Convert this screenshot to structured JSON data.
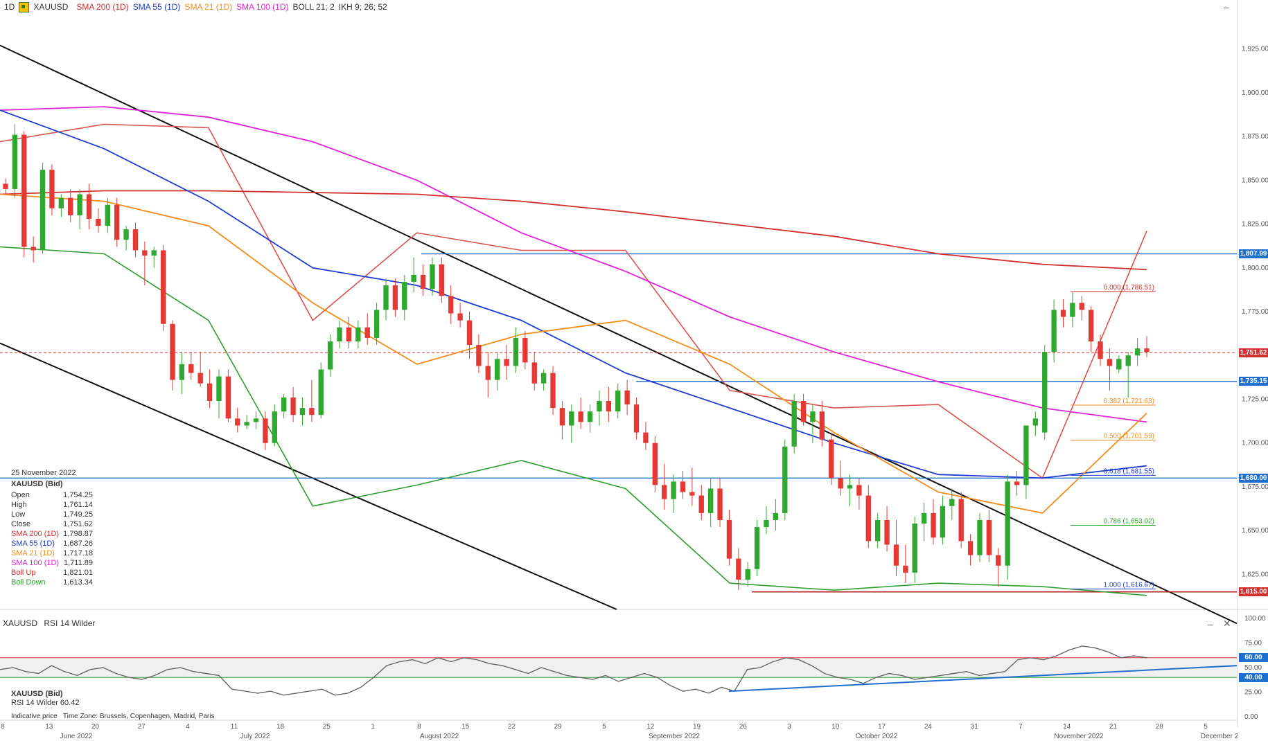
{
  "header": {
    "timeframe": "1D",
    "instrument": "XAUUSD",
    "indicators": [
      {
        "label": "SMA 200 (1D)",
        "color": "#d32f2f"
      },
      {
        "label": "SMA 55 (1D)",
        "color": "#1e3ccf"
      },
      {
        "label": "SMA 21 (1D)",
        "color": "#f28c1c"
      },
      {
        "label": "SMA 100 (1D)",
        "color": "#e020d8"
      },
      {
        "label": "BOLL 21; 2",
        "color": "#333333"
      },
      {
        "label": "IKH 9; 26; 52",
        "color": "#333333"
      }
    ]
  },
  "ohlc": {
    "date": "25 November 2022",
    "instrument": "XAUUSD (Bid)",
    "rows": [
      {
        "label": "Open",
        "value": "1,754.25",
        "color": "#333333"
      },
      {
        "label": "High",
        "value": "1,761.14",
        "color": "#333333"
      },
      {
        "label": "Low",
        "value": "1,749.25",
        "color": "#333333"
      },
      {
        "label": "Close",
        "value": "1,751.62",
        "color": "#333333"
      },
      {
        "label": "SMA 200 (1D)",
        "value": "1,798.87",
        "color": "#d32f2f"
      },
      {
        "label": "SMA 55 (1D)",
        "value": "1,687.26",
        "color": "#1e3ccf"
      },
      {
        "label": "SMA 21 (1D)",
        "value": "1,717.18",
        "color": "#f28c1c"
      },
      {
        "label": "SMA 100 (1D)",
        "value": "1,711.89",
        "color": "#e020d8"
      },
      {
        "label": "Boll Up",
        "value": "1,821.01",
        "color": "#d32f2f"
      },
      {
        "label": "Boll Down",
        "value": "1,613.34",
        "color": "#2e9e2e"
      }
    ]
  },
  "price_axis": {
    "ticks": [
      "1,925.00",
      "1,900.00",
      "1,875.00",
      "1,850.00",
      "1,825.00",
      "1,800.00",
      "1,775.00",
      "1,750.00",
      "1,725.00",
      "1,700.00",
      "1,675.00",
      "1,650.00",
      "1,625.00"
    ],
    "tags": [
      {
        "value": "1,807.99",
        "color": "#1e6fd0"
      },
      {
        "value": "1,751.62",
        "color": "#d32f2f"
      },
      {
        "value": "1,735.15",
        "color": "#1e6fd0"
      },
      {
        "value": "1,680.00",
        "color": "#1e6fd0"
      },
      {
        "value": "1,615.00",
        "color": "#d32f2f"
      }
    ]
  },
  "fibonacci": [
    {
      "label": "0.000 (1,786.51)",
      "color": "#d32f2f"
    },
    {
      "label": "0.382 (1,721.63)",
      "color": "#f28c1c"
    },
    {
      "label": "0.500 (1,701.59)",
      "color": "#f28c1c"
    },
    {
      "label": "0.618 (1,681.55)",
      "color": "#1e3ccf"
    },
    {
      "label": "0.786 (1,653.02)",
      "color": "#2e9e2e"
    },
    {
      "label": "1.000 (1,616.67)",
      "color": "#1e3ccf"
    }
  ],
  "date_axis": {
    "days": [
      "8",
      "13",
      "20",
      "27",
      "4",
      "11",
      "18",
      "25",
      "1",
      "8",
      "15",
      "22",
      "29",
      "5",
      "12",
      "19",
      "26",
      "3",
      "10",
      "17",
      "24",
      "31",
      "7",
      "14",
      "21",
      "28",
      "5"
    ],
    "months": [
      "June 2022",
      "July 2022",
      "August 2022",
      "September 2022",
      "October 2022",
      "November 2022",
      "December 2"
    ]
  },
  "rsi": {
    "instrument": "XAUUSD",
    "indicator": "RSI 14 Wilder",
    "info_instrument": "XAUUSD (Bid)",
    "info_label": "RSI 14 Wilder",
    "info_value": "60.42",
    "indicative": "Indicative price",
    "timezone": "Time Zone: Brussels, Copenhagen, Madrid, Paris",
    "ticks": [
      "100.00",
      "75.00",
      "50.00",
      "25.00",
      "0.00"
    ],
    "tags": [
      {
        "value": "60.00",
        "color": "#1e6fd0"
      },
      {
        "value": "40.00",
        "color": "#1e6fd0"
      }
    ]
  },
  "chart_data": {
    "type": "candlestick",
    "instrument": "XAUUSD (Bid)",
    "timeframe": "1D",
    "ylim": [
      1605,
      1945
    ],
    "candles_ohlc": [
      [
        1848,
        1851,
        1842,
        1845
      ],
      [
        1845,
        1882,
        1840,
        1876
      ],
      [
        1876,
        1878,
        1806,
        1812
      ],
      [
        1812,
        1818,
        1803,
        1810
      ],
      [
        1810,
        1860,
        1808,
        1856
      ],
      [
        1856,
        1859,
        1830,
        1834
      ],
      [
        1834,
        1842,
        1829,
        1840
      ],
      [
        1840,
        1845,
        1826,
        1830
      ],
      [
        1830,
        1845,
        1822,
        1842
      ],
      [
        1842,
        1848,
        1822,
        1828
      ],
      [
        1828,
        1834,
        1820,
        1824
      ],
      [
        1824,
        1840,
        1820,
        1836
      ],
      [
        1836,
        1840,
        1812,
        1816
      ],
      [
        1816,
        1824,
        1810,
        1822
      ],
      [
        1822,
        1826,
        1806,
        1810
      ],
      [
        1810,
        1815,
        1790,
        1807
      ],
      [
        1807,
        1812,
        1800,
        1810
      ],
      [
        1810,
        1813,
        1764,
        1768
      ],
      [
        1768,
        1770,
        1730,
        1736
      ],
      [
        1736,
        1752,
        1728,
        1745
      ],
      [
        1745,
        1752,
        1736,
        1740
      ],
      [
        1740,
        1752,
        1732,
        1734
      ],
      [
        1734,
        1742,
        1720,
        1724
      ],
      [
        1724,
        1742,
        1714,
        1738
      ],
      [
        1738,
        1742,
        1712,
        1714
      ],
      [
        1714,
        1720,
        1706,
        1710
      ],
      [
        1710,
        1716,
        1708,
        1712
      ],
      [
        1712,
        1718,
        1708,
        1714
      ],
      [
        1714,
        1718,
        1696,
        1700
      ],
      [
        1700,
        1722,
        1698,
        1718
      ],
      [
        1718,
        1728,
        1714,
        1726
      ],
      [
        1726,
        1732,
        1712,
        1716
      ],
      [
        1716,
        1726,
        1710,
        1720
      ],
      [
        1720,
        1736,
        1712,
        1716
      ],
      [
        1716,
        1746,
        1714,
        1742
      ],
      [
        1742,
        1762,
        1738,
        1758
      ],
      [
        1758,
        1770,
        1754,
        1766
      ],
      [
        1766,
        1772,
        1754,
        1758
      ],
      [
        1758,
        1770,
        1754,
        1766
      ],
      [
        1766,
        1774,
        1756,
        1760
      ],
      [
        1760,
        1780,
        1756,
        1776
      ],
      [
        1776,
        1794,
        1770,
        1790
      ],
      [
        1790,
        1794,
        1772,
        1776
      ],
      [
        1776,
        1796,
        1770,
        1792
      ],
      [
        1792,
        1806,
        1786,
        1796
      ],
      [
        1796,
        1802,
        1784,
        1788
      ],
      [
        1788,
        1806,
        1784,
        1802
      ],
      [
        1802,
        1806,
        1780,
        1784
      ],
      [
        1784,
        1790,
        1768,
        1774
      ],
      [
        1774,
        1780,
        1766,
        1770
      ],
      [
        1770,
        1775,
        1748,
        1756
      ],
      [
        1756,
        1762,
        1740,
        1744
      ],
      [
        1744,
        1752,
        1726,
        1736
      ],
      [
        1736,
        1752,
        1730,
        1748
      ],
      [
        1748,
        1756,
        1736,
        1744
      ],
      [
        1744,
        1766,
        1740,
        1760
      ],
      [
        1760,
        1764,
        1742,
        1746
      ],
      [
        1746,
        1752,
        1730,
        1734
      ],
      [
        1734,
        1742,
        1730,
        1740
      ],
      [
        1740,
        1744,
        1716,
        1720
      ],
      [
        1720,
        1724,
        1702,
        1710
      ],
      [
        1710,
        1722,
        1700,
        1718
      ],
      [
        1718,
        1726,
        1708,
        1712
      ],
      [
        1712,
        1722,
        1706,
        1718
      ],
      [
        1718,
        1730,
        1710,
        1724
      ],
      [
        1724,
        1732,
        1712,
        1718
      ],
      [
        1718,
        1734,
        1714,
        1730
      ],
      [
        1730,
        1736,
        1716,
        1722
      ],
      [
        1722,
        1726,
        1702,
        1706
      ],
      [
        1706,
        1712,
        1696,
        1700
      ],
      [
        1700,
        1704,
        1672,
        1676
      ],
      [
        1676,
        1688,
        1662,
        1668
      ],
      [
        1668,
        1682,
        1660,
        1678
      ],
      [
        1678,
        1684,
        1668,
        1672
      ],
      [
        1672,
        1686,
        1664,
        1670
      ],
      [
        1670,
        1676,
        1656,
        1660
      ],
      [
        1660,
        1680,
        1652,
        1674
      ],
      [
        1674,
        1680,
        1652,
        1656
      ],
      [
        1656,
        1662,
        1630,
        1634
      ],
      [
        1634,
        1640,
        1616,
        1622
      ],
      [
        1622,
        1632,
        1618,
        1628
      ],
      [
        1628,
        1656,
        1624,
        1652
      ],
      [
        1652,
        1664,
        1648,
        1656
      ],
      [
        1656,
        1668,
        1650,
        1660
      ],
      [
        1660,
        1702,
        1656,
        1698
      ],
      [
        1698,
        1728,
        1694,
        1724
      ],
      [
        1724,
        1728,
        1710,
        1712
      ],
      [
        1712,
        1722,
        1700,
        1718
      ],
      [
        1718,
        1724,
        1698,
        1702
      ],
      [
        1702,
        1706,
        1676,
        1680
      ],
      [
        1680,
        1690,
        1670,
        1674
      ],
      [
        1674,
        1682,
        1664,
        1676
      ],
      [
        1676,
        1680,
        1662,
        1670
      ],
      [
        1670,
        1676,
        1640,
        1644
      ],
      [
        1644,
        1660,
        1640,
        1656
      ],
      [
        1656,
        1664,
        1638,
        1642
      ],
      [
        1642,
        1656,
        1624,
        1630
      ],
      [
        1630,
        1642,
        1620,
        1626
      ],
      [
        1626,
        1658,
        1620,
        1654
      ],
      [
        1654,
        1666,
        1644,
        1660
      ],
      [
        1660,
        1668,
        1642,
        1646
      ],
      [
        1646,
        1670,
        1642,
        1664
      ],
      [
        1664,
        1674,
        1656,
        1668
      ],
      [
        1668,
        1672,
        1640,
        1644
      ],
      [
        1644,
        1648,
        1630,
        1636
      ],
      [
        1636,
        1660,
        1632,
        1656
      ],
      [
        1656,
        1662,
        1632,
        1636
      ],
      [
        1636,
        1640,
        1618,
        1630
      ],
      [
        1630,
        1682,
        1622,
        1678
      ],
      [
        1678,
        1684,
        1670,
        1676
      ],
      [
        1676,
        1700,
        1668,
        1710
      ],
      [
        1710,
        1718,
        1704,
        1714
      ],
      [
        1706,
        1756,
        1702,
        1752
      ],
      [
        1752,
        1782,
        1746,
        1776
      ],
      [
        1776,
        1782,
        1766,
        1772
      ],
      [
        1772,
        1786,
        1766,
        1780
      ],
      [
        1780,
        1784,
        1770,
        1776
      ],
      [
        1776,
        1778,
        1752,
        1758
      ],
      [
        1758,
        1762,
        1744,
        1748
      ],
      [
        1748,
        1754,
        1730,
        1744
      ],
      [
        1742,
        1750,
        1740,
        1748
      ],
      [
        1744,
        1752,
        1726,
        1750
      ],
      [
        1750,
        1760,
        1744,
        1754
      ],
      [
        1754,
        1761,
        1749,
        1752
      ]
    ],
    "sma200": [
      1842,
      1844,
      1844,
      1843,
      1842,
      1838,
      1832,
      1825,
      1818,
      1808,
      1802,
      1799
    ],
    "sma100": [
      1890,
      1892,
      1886,
      1872,
      1850,
      1820,
      1798,
      1772,
      1752,
      1735,
      1720,
      1712
    ],
    "sma55": [
      1890,
      1868,
      1838,
      1800,
      1790,
      1770,
      1740,
      1720,
      1700,
      1682,
      1680,
      1687
    ],
    "sma21": [
      1842,
      1838,
      1824,
      1780,
      1745,
      1762,
      1770,
      1745,
      1706,
      1672,
      1660,
      1717
    ],
    "boll_up": [
      1872,
      1882,
      1880,
      1770,
      1820,
      1810,
      1810,
      1730,
      1720,
      1722,
      1680,
      1821
    ],
    "boll_down": [
      1812,
      1808,
      1770,
      1664,
      1676,
      1690,
      1674,
      1620,
      1616,
      1620,
      1618,
      1613
    ],
    "horizontal_levels": [
      1807.99,
      1735.15,
      1680.0,
      1615.0,
      1751.62
    ],
    "fib_levels": [
      1786.51,
      1721.63,
      1701.59,
      1681.55,
      1653.02,
      1616.67
    ],
    "rsi_values": [
      48,
      50,
      46,
      44,
      52,
      46,
      42,
      48,
      50,
      44,
      40,
      38,
      42,
      48,
      50,
      46,
      44,
      42,
      28,
      26,
      24,
      26,
      22,
      24,
      26,
      28,
      22,
      24,
      30,
      40,
      52,
      56,
      58,
      54,
      60,
      56,
      60,
      58,
      54,
      52,
      48,
      44,
      50,
      46,
      42,
      40,
      38,
      42,
      36,
      40,
      44,
      40,
      32,
      26,
      28,
      24,
      30,
      26,
      48,
      50,
      56,
      60,
      58,
      52,
      44,
      40,
      38,
      34,
      40,
      44,
      42,
      38,
      40,
      42,
      44,
      46,
      42,
      44,
      46,
      58,
      60,
      58,
      62,
      68,
      72,
      70,
      66,
      60,
      62,
      60
    ],
    "rsi_ylim": [
      0,
      100
    ]
  }
}
